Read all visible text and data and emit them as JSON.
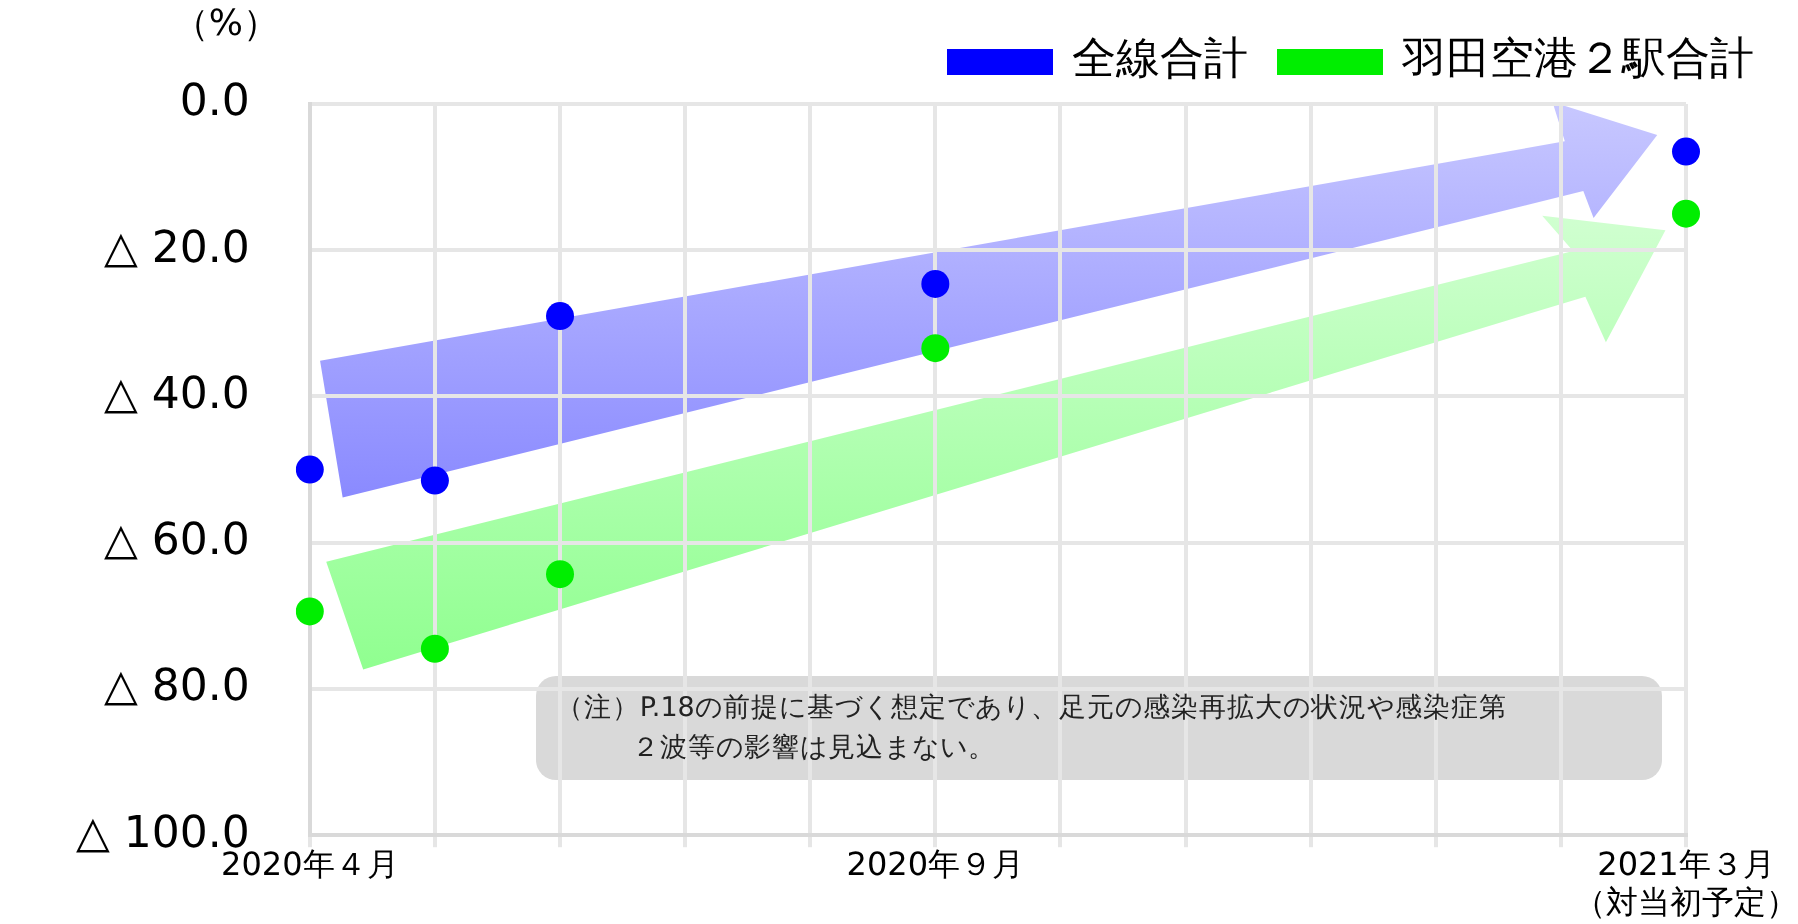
{
  "chart_data": {
    "type": "scatter",
    "categories": [
      "2020年４月",
      null,
      null,
      null,
      null,
      "2020年９月",
      null,
      null,
      null,
      null,
      null,
      "2021年３月（対当初予定）"
    ],
    "series": [
      {
        "name": "全線合計",
        "color": "#0000ff",
        "values": [
          -50,
          -51.5,
          -29,
          null,
          null,
          -24.6,
          null,
          null,
          null,
          null,
          null,
          -6.5
        ]
      },
      {
        "name": "羽田空港２駅合計",
        "color": "#00ee00",
        "values": [
          -69.4,
          -74.5,
          -64.3,
          null,
          null,
          -33.4,
          null,
          null,
          null,
          null,
          null,
          -15
        ]
      }
    ],
    "ylabel": "（%）",
    "ylim": [
      -100,
      0
    ],
    "yticks": [
      {
        "value": -100,
        "label": "△ 100.0"
      },
      {
        "value": -80,
        "label": "△ 80.0"
      },
      {
        "value": -60,
        "label": "△ 60.0"
      },
      {
        "value": -40,
        "label": "△ 40.0"
      },
      {
        "value": -20,
        "label": "△ 20.0"
      },
      {
        "value": 0,
        "label": "0.0"
      }
    ],
    "grid": true,
    "legend": "top right",
    "marker": "circle",
    "annotations": [
      "（注）P.18の前提に基づく想定であり、足元の感染再拡大の状況や感染症第２波等の影響は見込まない。"
    ]
  }
}
